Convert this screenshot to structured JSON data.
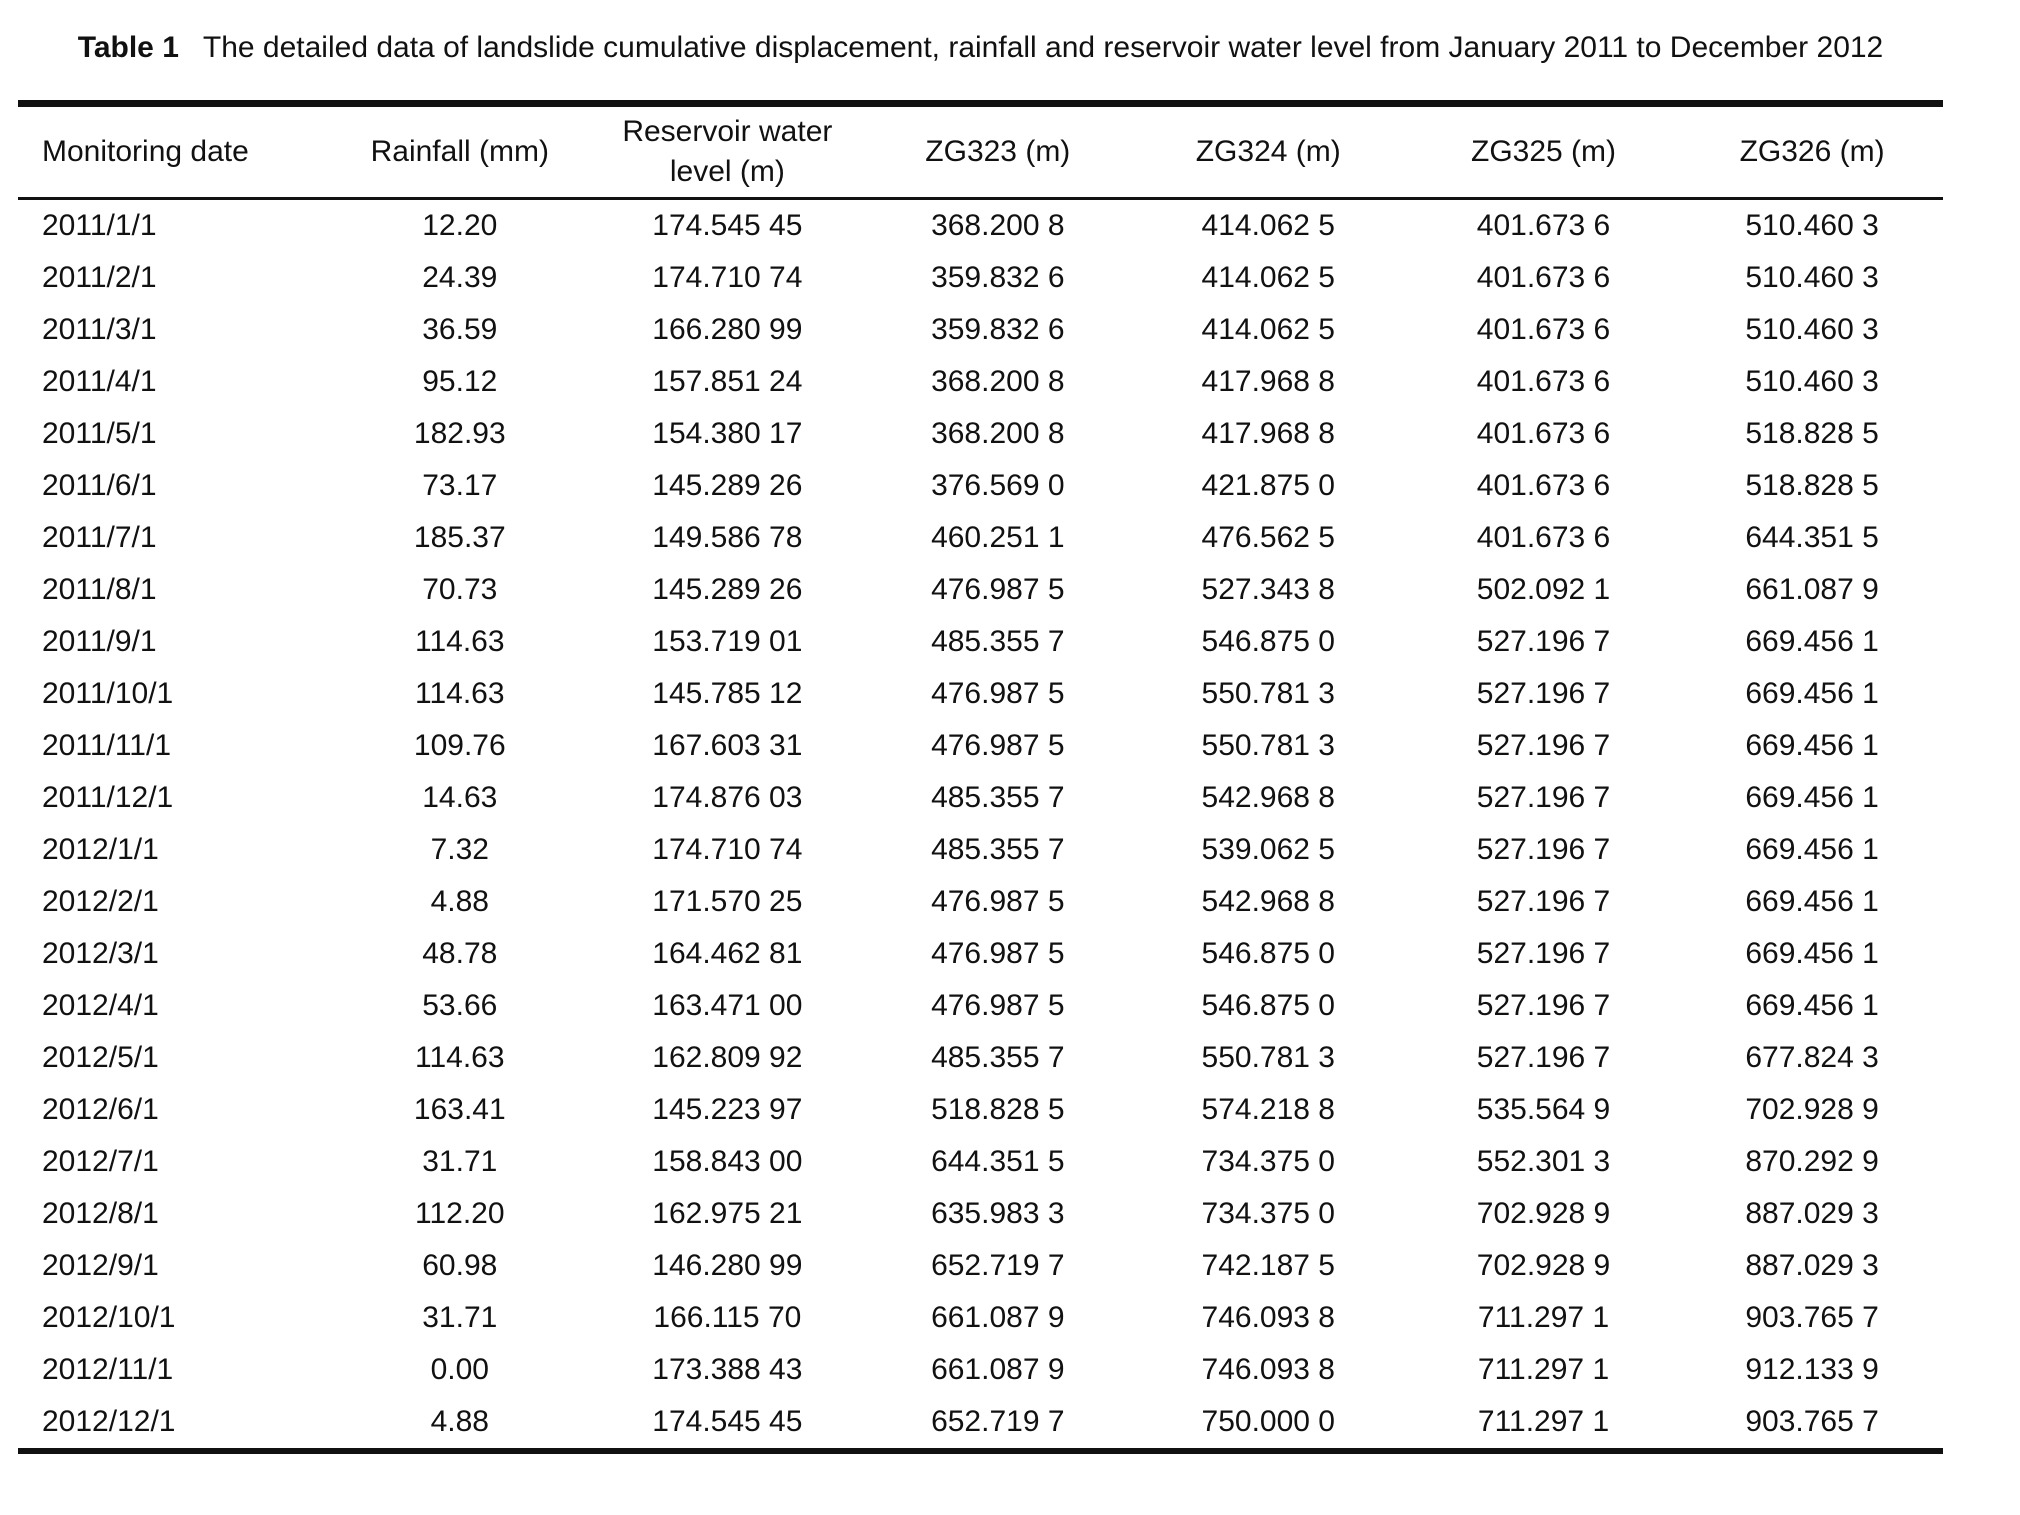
{
  "page": {
    "background": "#ffffff",
    "text_color": "#111111",
    "rule_color": "#111111"
  },
  "table": {
    "label": "Table 1",
    "caption": "The detailed data of landslide cumulative displacement, rainfall and reservoir water level from January 2011 to December 2012",
    "columns": [
      "Monitoring date",
      "Rainfall (mm)",
      "Reservoir water level (m)",
      "ZG323 (m)",
      "ZG324 (m)",
      "ZG325 (m)",
      "ZG326 (m)"
    ],
    "rows": [
      [
        "2011/1/1",
        "12.20",
        "174.545 45",
        "368.200 8",
        "414.062 5",
        "401.673 6",
        "510.460 3"
      ],
      [
        "2011/2/1",
        "24.39",
        "174.710 74",
        "359.832 6",
        "414.062 5",
        "401.673 6",
        "510.460 3"
      ],
      [
        "2011/3/1",
        "36.59",
        "166.280 99",
        "359.832 6",
        "414.062 5",
        "401.673 6",
        "510.460 3"
      ],
      [
        "2011/4/1",
        "95.12",
        "157.851 24",
        "368.200 8",
        "417.968 8",
        "401.673 6",
        "510.460 3"
      ],
      [
        "2011/5/1",
        "182.93",
        "154.380 17",
        "368.200 8",
        "417.968 8",
        "401.673 6",
        "518.828 5"
      ],
      [
        "2011/6/1",
        "73.17",
        "145.289 26",
        "376.569 0",
        "421.875 0",
        "401.673 6",
        "518.828 5"
      ],
      [
        "2011/7/1",
        "185.37",
        "149.586 78",
        "460.251 1",
        "476.562 5",
        "401.673 6",
        "644.351 5"
      ],
      [
        "2011/8/1",
        "70.73",
        "145.289 26",
        "476.987 5",
        "527.343 8",
        "502.092 1",
        "661.087 9"
      ],
      [
        "2011/9/1",
        "114.63",
        "153.719 01",
        "485.355 7",
        "546.875 0",
        "527.196 7",
        "669.456 1"
      ],
      [
        "2011/10/1",
        "114.63",
        "145.785 12",
        "476.987 5",
        "550.781 3",
        "527.196 7",
        "669.456 1"
      ],
      [
        "2011/11/1",
        "109.76",
        "167.603 31",
        "476.987 5",
        "550.781 3",
        "527.196 7",
        "669.456 1"
      ],
      [
        "2011/12/1",
        "14.63",
        "174.876 03",
        "485.355 7",
        "542.968 8",
        "527.196 7",
        "669.456 1"
      ],
      [
        "2012/1/1",
        "7.32",
        "174.710 74",
        "485.355 7",
        "539.062 5",
        "527.196 7",
        "669.456 1"
      ],
      [
        "2012/2/1",
        "4.88",
        "171.570 25",
        "476.987 5",
        "542.968 8",
        "527.196 7",
        "669.456 1"
      ],
      [
        "2012/3/1",
        "48.78",
        "164.462 81",
        "476.987 5",
        "546.875 0",
        "527.196 7",
        "669.456 1"
      ],
      [
        "2012/4/1",
        "53.66",
        "163.471 00",
        "476.987 5",
        "546.875 0",
        "527.196 7",
        "669.456 1"
      ],
      [
        "2012/5/1",
        "114.63",
        "162.809 92",
        "485.355 7",
        "550.781 3",
        "527.196 7",
        "677.824 3"
      ],
      [
        "2012/6/1",
        "163.41",
        "145.223 97",
        "518.828 5",
        "574.218 8",
        "535.564 9",
        "702.928 9"
      ],
      [
        "2012/7/1",
        "31.71",
        "158.843 00",
        "644.351 5",
        "734.375 0",
        "552.301 3",
        "870.292 9"
      ],
      [
        "2012/8/1",
        "112.20",
        "162.975 21",
        "635.983 3",
        "734.375 0",
        "702.928 9",
        "887.029 3"
      ],
      [
        "2012/9/1",
        "60.98",
        "146.280 99",
        "652.719 7",
        "742.187 5",
        "702.928 9",
        "887.029 3"
      ],
      [
        "2012/10/1",
        "31.71",
        "166.115 70",
        "661.087 9",
        "746.093 8",
        "711.297 1",
        "903.765 7"
      ],
      [
        "2012/11/1",
        "0.00",
        "173.388 43",
        "661.087 9",
        "746.093 8",
        "711.297 1",
        "912.133 9"
      ],
      [
        "2012/12/1",
        "4.88",
        "174.545 45",
        "652.719 7",
        "750.000 0",
        "711.297 1",
        "903.765 7"
      ]
    ]
  }
}
